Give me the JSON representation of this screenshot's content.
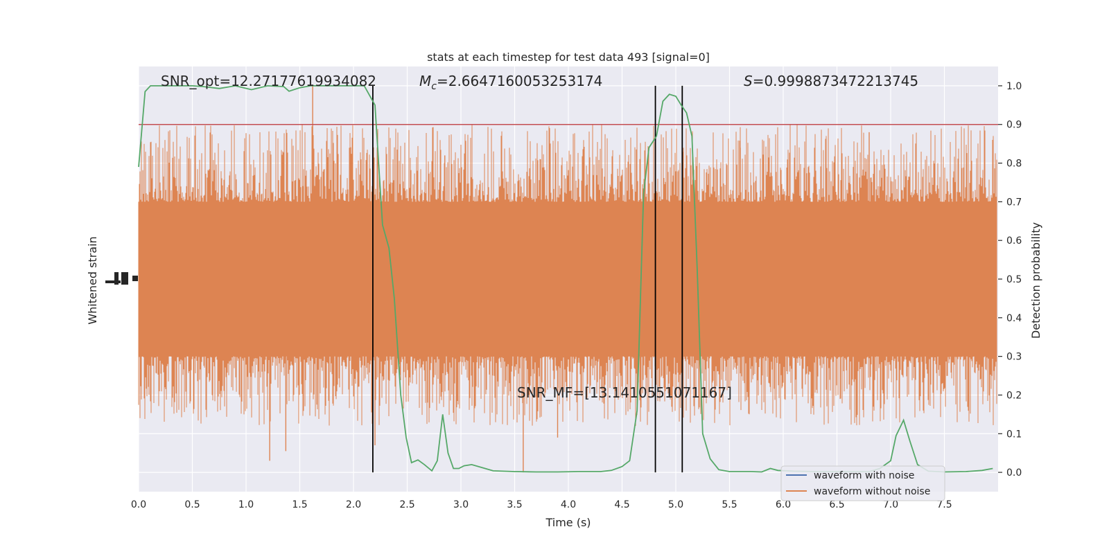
{
  "chart_data": {
    "type": "line",
    "title": "stats at each timestep for test data 493 [signal=0]",
    "xlabel": "Time (s)",
    "ylabel_left": "Whitened strain",
    "ylabel_right": "Detection probability",
    "xlim": [
      0.0,
      8.0
    ],
    "ylim_right": [
      -0.05,
      1.05
    ],
    "x_ticks": [
      "0.0",
      "0.5",
      "1.0",
      "1.5",
      "2.0",
      "2.5",
      "3.0",
      "3.5",
      "4.0",
      "4.5",
      "5.0",
      "5.5",
      "6.0",
      "6.5",
      "7.0",
      "7.5"
    ],
    "y_ticks_right": [
      "0.0",
      "0.1",
      "0.2",
      "0.3",
      "0.4",
      "0.5",
      "0.6",
      "0.7",
      "0.8",
      "0.9",
      "1.0"
    ],
    "grid": true,
    "legend_placement": "lower right",
    "legend": [
      {
        "label": "waveform with noise",
        "color": "#4c72b0"
      },
      {
        "label": "waveform without noise",
        "color": "#dd8452"
      }
    ],
    "annotations": {
      "snr_opt": "SNR_opt=12.27177619934082",
      "mc_symbol": "M",
      "mc_subscript": "c",
      "mc_value": "=2.6647160053253174",
      "s_symbol": "S",
      "s_value": "=0.9998873472213745",
      "snr_mf": "SNR_MF=[13.1410551071167]"
    },
    "threshold": {
      "y": 0.9,
      "color": "#c44e52"
    },
    "vertical_lines_x": [
      2.18,
      4.81,
      5.06
    ],
    "strain_band": {
      "color": "#dd8452",
      "core_low": 0.3,
      "core_high": 0.7,
      "x_range": [
        0.0,
        7.99
      ]
    },
    "series": [
      {
        "name": "detection probability",
        "color": "#55a868",
        "points": [
          [
            0.0,
            0.79
          ],
          [
            0.06,
            0.985
          ],
          [
            0.11,
            1.0
          ],
          [
            0.3,
            1.0
          ],
          [
            0.5,
            1.0
          ],
          [
            0.6,
            0.998
          ],
          [
            0.75,
            0.993
          ],
          [
            0.9,
            1.0
          ],
          [
            1.05,
            0.99
          ],
          [
            1.2,
            1.0
          ],
          [
            1.35,
            0.998
          ],
          [
            1.4,
            0.986
          ],
          [
            1.5,
            0.995
          ],
          [
            1.6,
            1.0
          ],
          [
            1.8,
            1.0
          ],
          [
            1.95,
            1.0
          ],
          [
            2.1,
            1.0
          ],
          [
            2.2,
            0.95
          ],
          [
            2.27,
            0.64
          ],
          [
            2.33,
            0.58
          ],
          [
            2.38,
            0.45
          ],
          [
            2.44,
            0.2
          ],
          [
            2.49,
            0.09
          ],
          [
            2.54,
            0.025
          ],
          [
            2.6,
            0.032
          ],
          [
            2.66,
            0.02
          ],
          [
            2.73,
            0.004
          ],
          [
            2.78,
            0.03
          ],
          [
            2.83,
            0.15
          ],
          [
            2.88,
            0.05
          ],
          [
            2.93,
            0.01
          ],
          [
            2.98,
            0.01
          ],
          [
            3.03,
            0.017
          ],
          [
            3.1,
            0.02
          ],
          [
            3.2,
            0.012
          ],
          [
            3.3,
            0.004
          ],
          [
            3.5,
            0.002
          ],
          [
            3.7,
            0.001
          ],
          [
            3.9,
            0.001
          ],
          [
            4.1,
            0.002
          ],
          [
            4.3,
            0.002
          ],
          [
            4.4,
            0.005
          ],
          [
            4.5,
            0.015
          ],
          [
            4.57,
            0.03
          ],
          [
            4.64,
            0.16
          ],
          [
            4.7,
            0.72
          ],
          [
            4.75,
            0.84
          ],
          [
            4.82,
            0.87
          ],
          [
            4.88,
            0.96
          ],
          [
            4.94,
            0.978
          ],
          [
            5.0,
            0.973
          ],
          [
            5.05,
            0.95
          ],
          [
            5.1,
            0.93
          ],
          [
            5.15,
            0.87
          ],
          [
            5.2,
            0.52
          ],
          [
            5.25,
            0.1
          ],
          [
            5.32,
            0.035
          ],
          [
            5.4,
            0.007
          ],
          [
            5.5,
            0.002
          ],
          [
            5.7,
            0.002
          ],
          [
            5.8,
            0.001
          ],
          [
            5.88,
            0.01
          ],
          [
            5.95,
            0.005
          ],
          [
            6.1,
            0.003
          ],
          [
            6.3,
            0.002
          ],
          [
            6.6,
            0.002
          ],
          [
            6.8,
            0.002
          ],
          [
            6.9,
            0.01
          ],
          [
            7.0,
            0.03
          ],
          [
            7.05,
            0.095
          ],
          [
            7.12,
            0.135
          ],
          [
            7.18,
            0.08
          ],
          [
            7.25,
            0.02
          ],
          [
            7.35,
            0.003
          ],
          [
            7.5,
            0.001
          ],
          [
            7.7,
            0.002
          ],
          [
            7.85,
            0.005
          ],
          [
            7.95,
            0.01
          ]
        ]
      }
    ]
  }
}
